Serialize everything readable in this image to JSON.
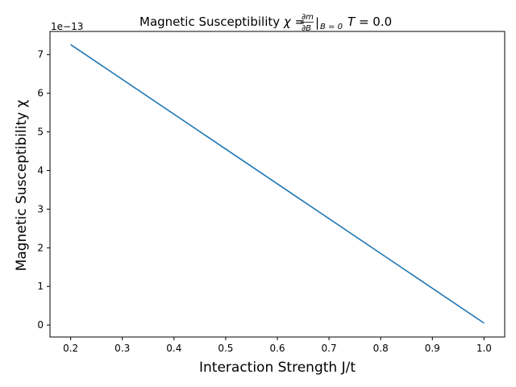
{
  "chart_data": {
    "type": "line",
    "title_prefix": "Magnetic Susceptibility ",
    "title_math": {
      "symbol": "χ",
      "equals": " = ",
      "frac_num": "∂m",
      "frac_den": "∂B",
      "bar": "|",
      "subscript": "B = 0",
      "temp_symbol": "T",
      "temp_value": " = 0.0"
    },
    "xlabel": "Interaction Strength J/t",
    "ylabel": "Magnetic Susceptibility χ",
    "y_offset_text": "1e−13",
    "x_ticks": [
      0.2,
      0.3,
      0.4,
      0.5,
      0.6,
      0.7,
      0.8,
      0.9,
      1.0
    ],
    "y_ticks": [
      0,
      1,
      2,
      3,
      4,
      5,
      6,
      7
    ],
    "xlim": [
      0.16,
      1.04
    ],
    "ylim": [
      -0.31,
      7.6
    ],
    "grid": false,
    "series": [
      {
        "color": "#1f77b4",
        "x": [
          0.2,
          1.0
        ],
        "y": [
          7.26,
          0.05
        ]
      }
    ]
  }
}
